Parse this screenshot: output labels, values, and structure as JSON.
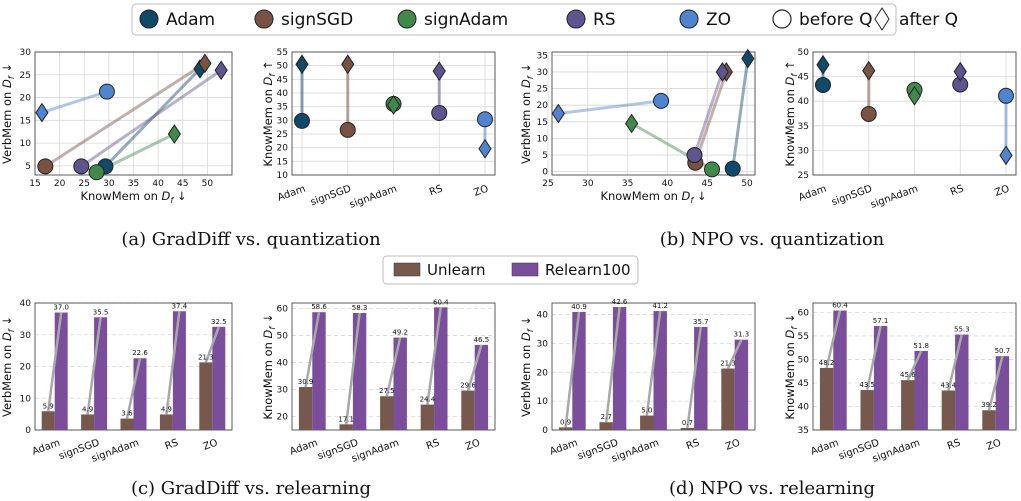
{
  "colors": {
    "Adam": "#0f4a6b",
    "signSGD": "#7a5244",
    "signAdam": "#3f8a4a",
    "RS": "#5e5490",
    "ZO": "#4f85d0",
    "Unlearn": "#76594c",
    "Relearn100": "#7b4e9c",
    "connector": "#a8a8a8",
    "grid": "#d8d8d8"
  },
  "legend_top": {
    "items": [
      {
        "label": "Adam",
        "marker": "circle",
        "color_key": "Adam"
      },
      {
        "label": "signSGD",
        "marker": "circle",
        "color_key": "signSGD"
      },
      {
        "label": "signAdam",
        "marker": "circle",
        "color_key": "signAdam"
      },
      {
        "label": "RS",
        "marker": "circle",
        "color_key": "RS"
      },
      {
        "label": "ZO",
        "marker": "circle",
        "color_key": "ZO"
      },
      {
        "label": "before Q",
        "marker": "circle-open"
      },
      {
        "label": "after Q",
        "marker": "diamond-open"
      }
    ]
  },
  "legend_mid": {
    "items": [
      {
        "label": "Unlearn",
        "color_key": "Unlearn"
      },
      {
        "label": "Relearn100",
        "color_key": "Relearn100"
      }
    ]
  },
  "captions": {
    "a": "(a) GradDiff vs. quantization",
    "b": "(b) NPO vs. quantization",
    "c": "(c) GradDiff vs. relearning",
    "d": "(d) NPO vs. relearning"
  },
  "chart_data": [
    {
      "id": "a-left",
      "type": "scatter",
      "xlabel": "KnowMem on D_f ↓",
      "ylabel": "VerbMem on D_f ↓",
      "xlim": [
        15,
        55
      ],
      "ylim": [
        3,
        30
      ],
      "xticks": [
        15,
        20,
        25,
        30,
        35,
        40,
        45,
        50
      ],
      "yticks": [
        5,
        10,
        15,
        20,
        25,
        30
      ],
      "series": [
        {
          "name": "Adam",
          "before": [
            29.3,
            4.9
          ],
          "after": [
            48.5,
            26.3
          ]
        },
        {
          "name": "signSGD",
          "before": [
            17.1,
            4.9
          ],
          "after": [
            49.5,
            27.5
          ]
        },
        {
          "name": "signAdam",
          "before": [
            27.5,
            3.6
          ],
          "after": [
            43.3,
            12.0
          ]
        },
        {
          "name": "RS",
          "before": [
            24.4,
            4.9
          ],
          "after": [
            52.8,
            26.0
          ]
        },
        {
          "name": "ZO",
          "before": [
            29.6,
            21.3
          ],
          "after": [
            16.4,
            16.7
          ]
        }
      ]
    },
    {
      "id": "a-right",
      "type": "dumbbell",
      "ylabel": "KnowMem on D_f ↑",
      "categories": [
        "Adam",
        "signSGD",
        "signAdam",
        "RS",
        "ZO"
      ],
      "ylim": [
        10,
        55
      ],
      "yticks": [
        10,
        15,
        20,
        25,
        30,
        35,
        40,
        45,
        50,
        55
      ],
      "before": [
        29.8,
        26.5,
        36.0,
        32.7,
        30.4
      ],
      "after": [
        50.5,
        50.5,
        35.6,
        48.0,
        19.6
      ]
    },
    {
      "id": "b-left",
      "type": "scatter",
      "xlabel": "KnowMem on D_f ↓",
      "ylabel": "VerbMem on D_f ↓",
      "xlim": [
        25.5,
        51
      ],
      "ylim": [
        -1,
        36
      ],
      "xticks": [
        25,
        30,
        35,
        40,
        45,
        50
      ],
      "yticks": [
        0,
        5,
        10,
        15,
        20,
        25,
        30,
        35
      ],
      "series": [
        {
          "name": "Adam",
          "before": [
            48.2,
            0.9
          ],
          "after": [
            50.1,
            34.0
          ]
        },
        {
          "name": "signSGD",
          "before": [
            43.5,
            2.7
          ],
          "after": [
            47.4,
            30.0
          ]
        },
        {
          "name": "signAdam",
          "before": [
            45.6,
            0.7
          ],
          "after": [
            35.5,
            14.5
          ]
        },
        {
          "name": "RS",
          "before": [
            43.4,
            5.0
          ],
          "after": [
            46.9,
            30.0
          ]
        },
        {
          "name": "ZO",
          "before": [
            39.2,
            21.3
          ],
          "after": [
            26.3,
            17.5
          ]
        }
      ]
    },
    {
      "id": "b-right",
      "type": "dumbbell",
      "ylabel": "KnowMem on D_f ↑",
      "categories": [
        "Adam",
        "signSGD",
        "signAdam",
        "RS",
        "ZO"
      ],
      "ylim": [
        25,
        50
      ],
      "yticks": [
        25,
        30,
        35,
        40,
        45,
        50
      ],
      "before": [
        43.3,
        37.4,
        42.3,
        43.4,
        41.1
      ],
      "after": [
        47.4,
        46.2,
        41.1,
        46.0,
        29.0
      ]
    },
    {
      "id": "c-left",
      "type": "bar",
      "ylabel": "VerbMem on D_f ↓",
      "categories": [
        "Adam",
        "signSGD",
        "signAdam",
        "RS",
        "ZO"
      ],
      "ylim": [
        0,
        40
      ],
      "yticks": [
        0,
        10,
        20,
        30,
        40
      ],
      "series": [
        {
          "name": "Unlearn",
          "values": [
            5.9,
            4.9,
            3.6,
            4.9,
            21.3
          ]
        },
        {
          "name": "Relearn100",
          "values": [
            37.0,
            35.5,
            22.6,
            37.4,
            32.5
          ]
        }
      ]
    },
    {
      "id": "c-right",
      "type": "bar",
      "ylabel": "KnowMem on D_f ↓",
      "categories": [
        "Adam",
        "signSGD",
        "signAdam",
        "RS",
        "ZO"
      ],
      "ylim": [
        15,
        62
      ],
      "yticks": [
        20,
        30,
        40,
        50,
        60
      ],
      "series": [
        {
          "name": "Unlearn",
          "values": [
            30.9,
            17.1,
            27.5,
            24.4,
            29.6
          ]
        },
        {
          "name": "Relearn100",
          "values": [
            58.6,
            58.3,
            49.2,
            60.4,
            46.5
          ]
        }
      ]
    },
    {
      "id": "d-left",
      "type": "bar",
      "ylabel": "VerbMem on D_f ↓",
      "categories": [
        "Adam",
        "signSGD",
        "signAdam",
        "RS",
        "ZO"
      ],
      "ylim": [
        0,
        44
      ],
      "yticks": [
        0,
        10,
        20,
        30,
        40
      ],
      "series": [
        {
          "name": "Unlearn",
          "values": [
            0.9,
            2.7,
            5.0,
            0.7,
            21.3
          ]
        },
        {
          "name": "Relearn100",
          "values": [
            40.9,
            42.6,
            41.2,
            35.7,
            31.3
          ]
        }
      ]
    },
    {
      "id": "d-right",
      "type": "bar",
      "ylabel": "KnowMem on D_f ↓",
      "categories": [
        "Adam",
        "signSGD",
        "signAdam",
        "RS",
        "ZO"
      ],
      "ylim": [
        35,
        62
      ],
      "yticks": [
        35,
        40,
        45,
        50,
        55,
        60
      ],
      "series": [
        {
          "name": "Unlearn",
          "values": [
            48.2,
            43.5,
            45.6,
            43.4,
            39.2
          ]
        },
        {
          "name": "Relearn100",
          "values": [
            60.4,
            57.1,
            51.8,
            55.3,
            50.7
          ]
        }
      ]
    }
  ]
}
